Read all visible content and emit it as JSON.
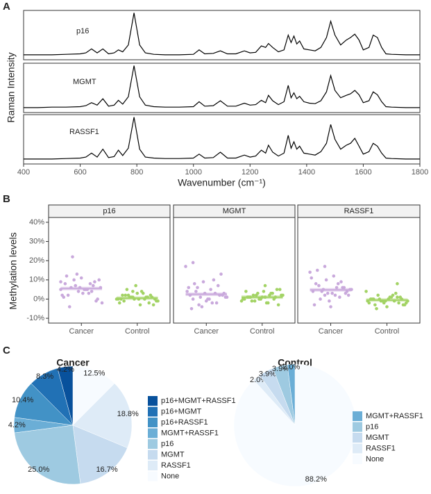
{
  "chart_data": [
    {
      "type": "line",
      "panel_label": "A",
      "ylabel": "Raman Intensity",
      "xlabel": "Wavenumber (cm⁻¹)",
      "xlim": [
        400,
        1800
      ],
      "xticks": [
        400,
        600,
        800,
        1000,
        1200,
        1400,
        1600,
        1800
      ],
      "ylim": [
        0,
        1
      ],
      "x": [
        400,
        450,
        500,
        550,
        600,
        620,
        640,
        660,
        680,
        700,
        720,
        735,
        750,
        770,
        790,
        810,
        830,
        860,
        900,
        950,
        1000,
        1020,
        1040,
        1070,
        1095,
        1120,
        1150,
        1180,
        1200,
        1220,
        1240,
        1255,
        1265,
        1280,
        1300,
        1320,
        1335,
        1345,
        1355,
        1365,
        1375,
        1390,
        1410,
        1430,
        1450,
        1470,
        1485,
        1500,
        1520,
        1540,
        1555,
        1570,
        1585,
        1600,
        1620,
        1635,
        1650,
        1665,
        1680,
        1700,
        1750,
        1800
      ],
      "series": [
        {
          "name": "p16",
          "color": "#000000",
          "values": [
            0.1,
            0.1,
            0.1,
            0.11,
            0.12,
            0.14,
            0.22,
            0.14,
            0.22,
            0.12,
            0.14,
            0.2,
            0.16,
            0.3,
            0.95,
            0.3,
            0.14,
            0.11,
            0.1,
            0.1,
            0.11,
            0.2,
            0.12,
            0.13,
            0.18,
            0.12,
            0.12,
            0.18,
            0.14,
            0.15,
            0.28,
            0.25,
            0.33,
            0.25,
            0.16,
            0.2,
            0.5,
            0.35,
            0.48,
            0.32,
            0.38,
            0.22,
            0.2,
            0.18,
            0.25,
            0.45,
            0.78,
            0.5,
            0.3,
            0.4,
            0.45,
            0.52,
            0.4,
            0.2,
            0.25,
            0.5,
            0.45,
            0.25,
            0.12,
            0.11,
            0.1,
            0.1
          ]
        },
        {
          "name": "MGMT",
          "color": "#000000",
          "values": [
            0.1,
            0.1,
            0.11,
            0.11,
            0.12,
            0.14,
            0.2,
            0.15,
            0.28,
            0.13,
            0.15,
            0.25,
            0.17,
            0.32,
            0.95,
            0.32,
            0.15,
            0.12,
            0.11,
            0.11,
            0.12,
            0.22,
            0.13,
            0.14,
            0.24,
            0.13,
            0.13,
            0.19,
            0.15,
            0.16,
            0.25,
            0.2,
            0.35,
            0.24,
            0.16,
            0.22,
            0.55,
            0.3,
            0.4,
            0.28,
            0.33,
            0.22,
            0.19,
            0.18,
            0.24,
            0.42,
            0.75,
            0.45,
            0.3,
            0.35,
            0.38,
            0.45,
            0.36,
            0.2,
            0.24,
            0.42,
            0.36,
            0.22,
            0.12,
            0.11,
            0.1,
            0.1
          ]
        },
        {
          "name": "RASSF1",
          "color": "#000000",
          "values": [
            0.1,
            0.1,
            0.1,
            0.11,
            0.12,
            0.14,
            0.22,
            0.14,
            0.3,
            0.13,
            0.15,
            0.28,
            0.17,
            0.32,
            0.95,
            0.3,
            0.14,
            0.12,
            0.11,
            0.11,
            0.12,
            0.2,
            0.12,
            0.13,
            0.24,
            0.12,
            0.12,
            0.18,
            0.14,
            0.16,
            0.28,
            0.22,
            0.38,
            0.24,
            0.16,
            0.22,
            0.58,
            0.32,
            0.45,
            0.3,
            0.36,
            0.22,
            0.2,
            0.18,
            0.25,
            0.42,
            0.8,
            0.5,
            0.3,
            0.38,
            0.42,
            0.52,
            0.36,
            0.2,
            0.25,
            0.42,
            0.36,
            0.22,
            0.12,
            0.11,
            0.1,
            0.1
          ]
        }
      ]
    },
    {
      "type": "strip",
      "panel_label": "B",
      "ylabel": "Methylation levels",
      "ylim": [
        -12.5,
        42.5
      ],
      "yticks": [
        {
          "value": -10,
          "label": "-10%"
        },
        {
          "value": 0,
          "label": "0%"
        },
        {
          "value": 10,
          "label": "10%"
        },
        {
          "value": 20,
          "label": "20%"
        },
        {
          "value": 30,
          "label": "30%"
        },
        {
          "value": 40,
          "label": "40%"
        }
      ],
      "facets": [
        {
          "name": "p16",
          "groups": [
            {
              "name": "Cancer",
              "color": "#c9a9dc",
              "mean": 5.5,
              "values": [
                9,
                22,
                5,
                -1,
                8,
                13,
                3,
                6,
                -4,
                11,
                7,
                2,
                10,
                5,
                0,
                12,
                4,
                8,
                -2,
                6,
                3,
                9,
                1,
                7,
                5,
                10,
                2,
                6,
                4,
                5
              ]
            },
            {
              "name": "Control",
              "color": "#a3d365",
              "mean": 0.5,
              "values": [
                1,
                0,
                -1,
                2,
                3,
                -2,
                0,
                1,
                4,
                -3,
                2,
                0,
                1,
                -1,
                5,
                0,
                2,
                -2,
                1,
                3,
                0,
                -1,
                7,
                1,
                0,
                2,
                -3,
                1,
                0,
                4
              ]
            }
          ]
        },
        {
          "name": "MGMT",
          "groups": [
            {
              "name": "Cancer",
              "color": "#c9a9dc",
              "mean": 2.5,
              "values": [
                19,
                3,
                -2,
                17,
                6,
                0,
                13,
                2,
                -4,
                10,
                1,
                8,
                -1,
                7,
                4,
                -3,
                5,
                2,
                -5,
                9,
                3,
                1,
                4,
                0,
                2,
                6,
                1,
                -2,
                3,
                0
              ]
            },
            {
              "name": "Control",
              "color": "#a3d365",
              "mean": 1,
              "values": [
                7,
                5,
                4,
                3,
                2,
                2,
                1,
                1,
                0,
                0,
                -1,
                -2,
                -3,
                1,
                0,
                3,
                2,
                -1,
                4,
                1,
                0,
                2,
                -2,
                5,
                1,
                0,
                3,
                -1,
                2,
                1
              ]
            }
          ]
        },
        {
          "name": "RASSF1",
          "groups": [
            {
              "name": "Cancer",
              "color": "#c9a9dc",
              "mean": 4.8,
              "values": [
                17,
                6,
                2,
                15,
                -1,
                9,
                14,
                4,
                12,
                3,
                -3,
                10,
                8,
                5,
                7,
                -4,
                6,
                11,
                5,
                2,
                4,
                8,
                3,
                1,
                5,
                0,
                3,
                6,
                4,
                2
              ]
            },
            {
              "name": "Control",
              "color": "#a3d365",
              "mean": -0.5,
              "values": [
                8,
                4,
                2,
                1,
                0,
                0,
                -1,
                -1,
                -2,
                -3,
                -4,
                -2,
                -1,
                0,
                1,
                -3,
                0,
                -2,
                3,
                -1,
                -5,
                0,
                1,
                -2,
                -1,
                2,
                -3,
                0,
                -1,
                1
              ]
            }
          ]
        }
      ]
    },
    {
      "type": "pie",
      "panel_label": "C",
      "title": "Cancer",
      "categories": [
        "p16+MGMT+RASSF1",
        "p16+MGMT",
        "p16+RASSF1",
        "MGMT+RASSF1",
        "p16",
        "MGMT",
        "RASSF1",
        "None"
      ],
      "values": [
        4.2,
        8.3,
        10.4,
        4.2,
        25.0,
        16.7,
        18.8,
        12.5
      ],
      "value_labels": [
        "4.2%",
        "8.3%",
        "10.4%",
        "4.2%",
        "25.0%",
        "16.7%",
        "18.8%",
        "12.5%"
      ],
      "colors": [
        "#08519c",
        "#2171b5",
        "#4292c6",
        "#6baed6",
        "#9ecae1",
        "#c6dbef",
        "#deebf7",
        "#f7fbff"
      ]
    },
    {
      "type": "pie",
      "title": "Control",
      "categories": [
        "MGMT+RASSF1",
        "p16",
        "MGMT",
        "RASSF1",
        "None"
      ],
      "values": [
        2.0,
        3.9,
        3.9,
        2.0,
        88.2
      ],
      "value_labels": [
        "2.0%",
        "3.9%",
        "3.9%",
        "2.0%",
        "88.2%"
      ],
      "colors": [
        "#6baed6",
        "#9ecae1",
        "#c6dbef",
        "#deebf7",
        "#f7fbff"
      ]
    }
  ]
}
